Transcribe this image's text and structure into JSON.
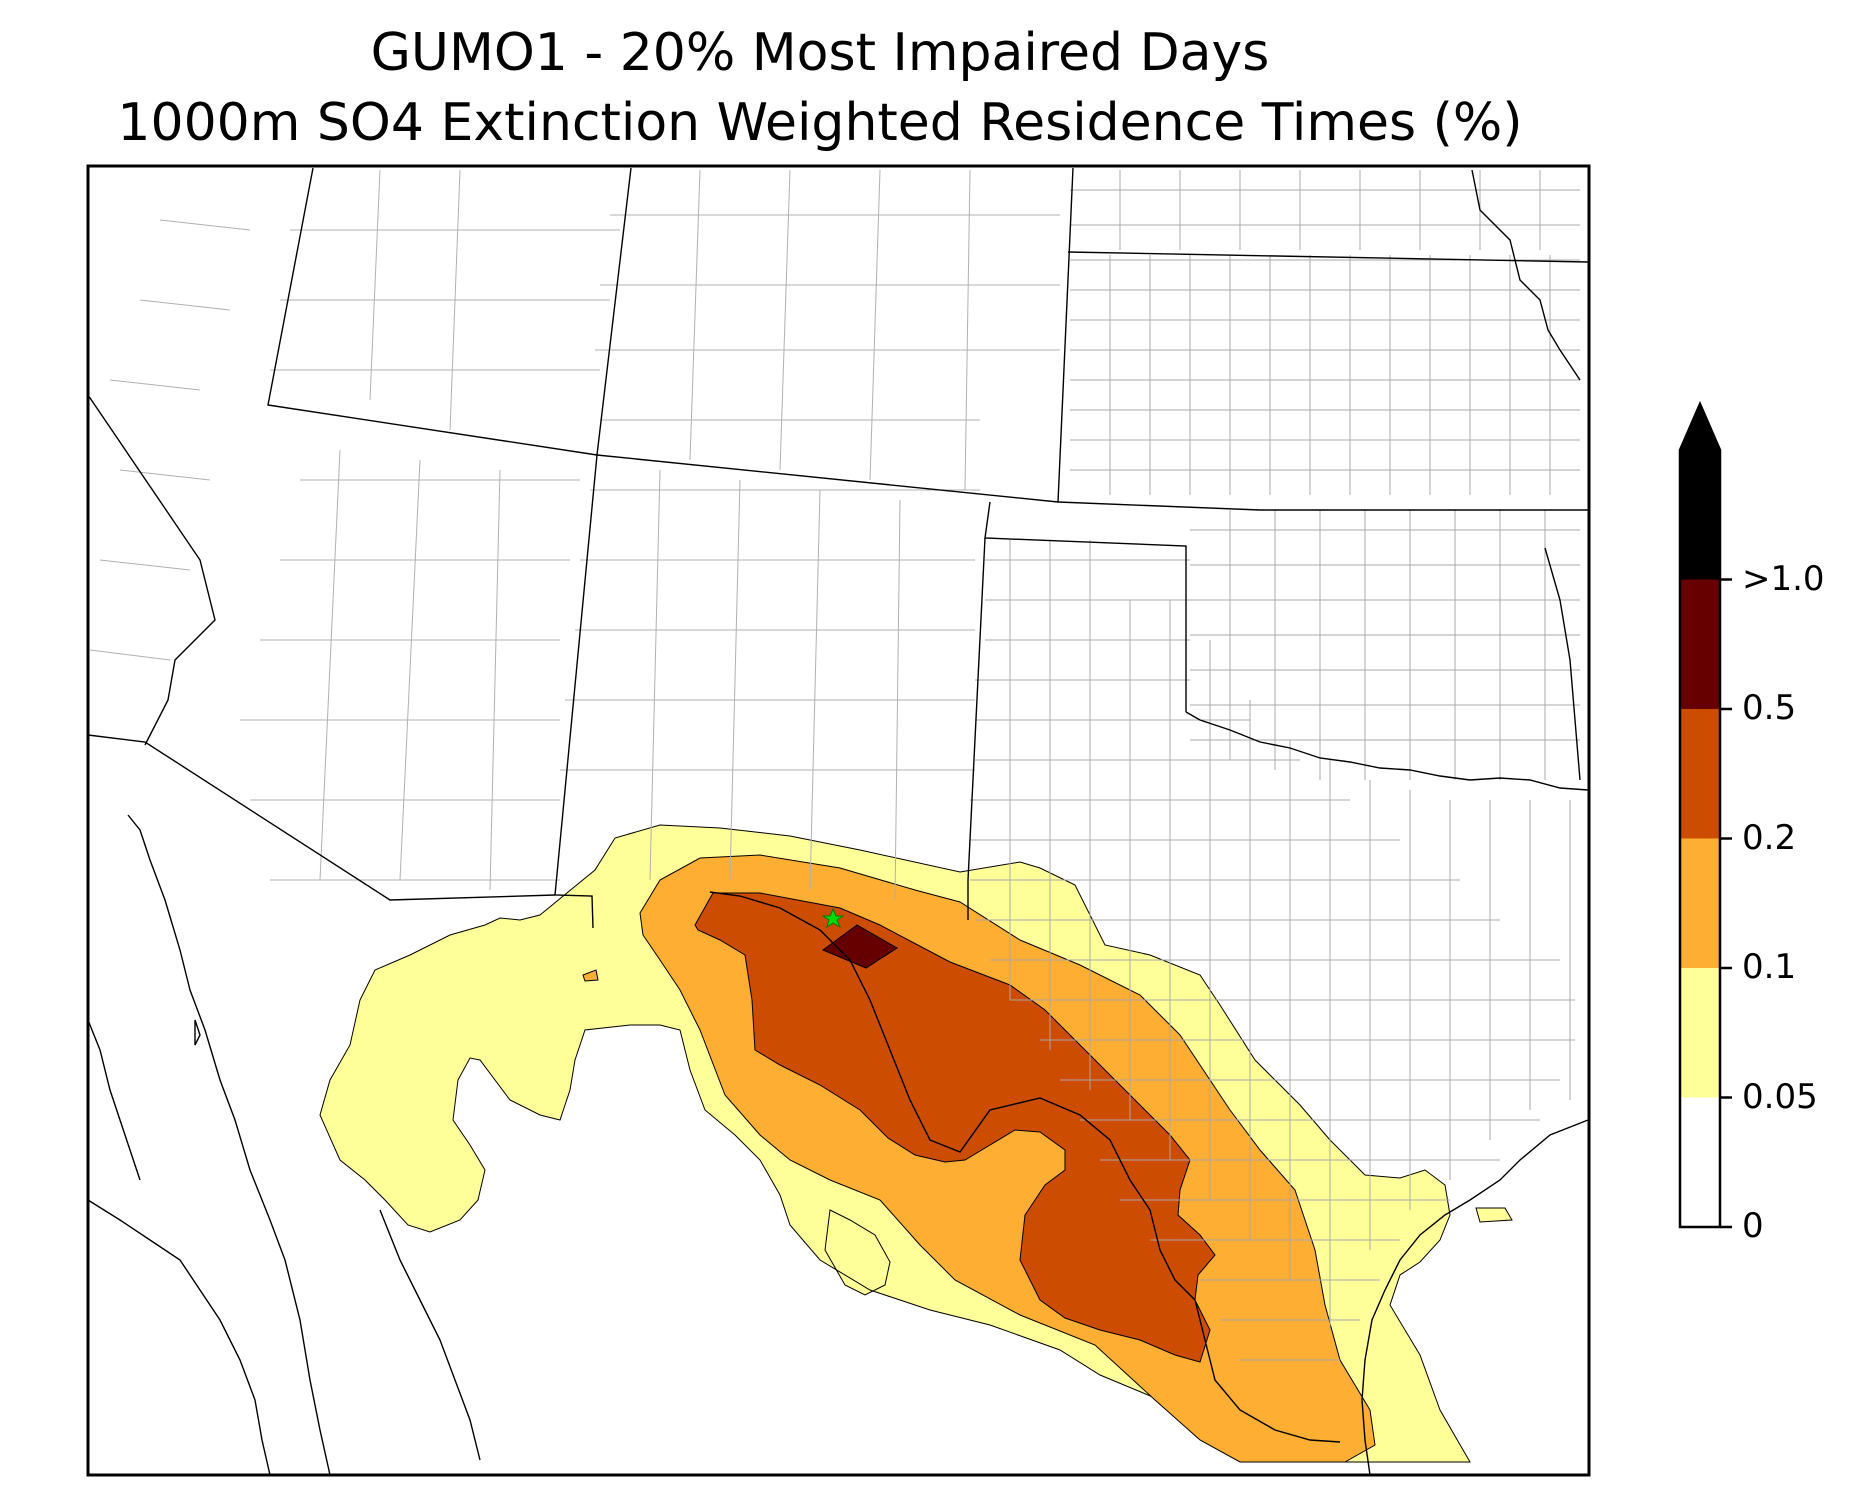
{
  "title_line1": "GUMO1 - 20% Most Impaired Days",
  "title_line2": "1000m SO4 Extinction Weighted Residence Times (%)",
  "colorbar": {
    "levels": [
      0,
      0.05,
      0.1,
      0.2,
      0.5,
      1.0
    ],
    "tick_labels": [
      "0",
      "0.05",
      "0.1",
      "0.2",
      "0.5",
      ">1.0"
    ],
    "colors": [
      "#ffffff",
      "#ffff99",
      "#fdae33",
      "#cc4c02",
      "#660000",
      "#000000"
    ],
    "extend": "max"
  },
  "marker": {
    "label": "",
    "color": "#00dd00",
    "icon": "star-icon"
  }
}
